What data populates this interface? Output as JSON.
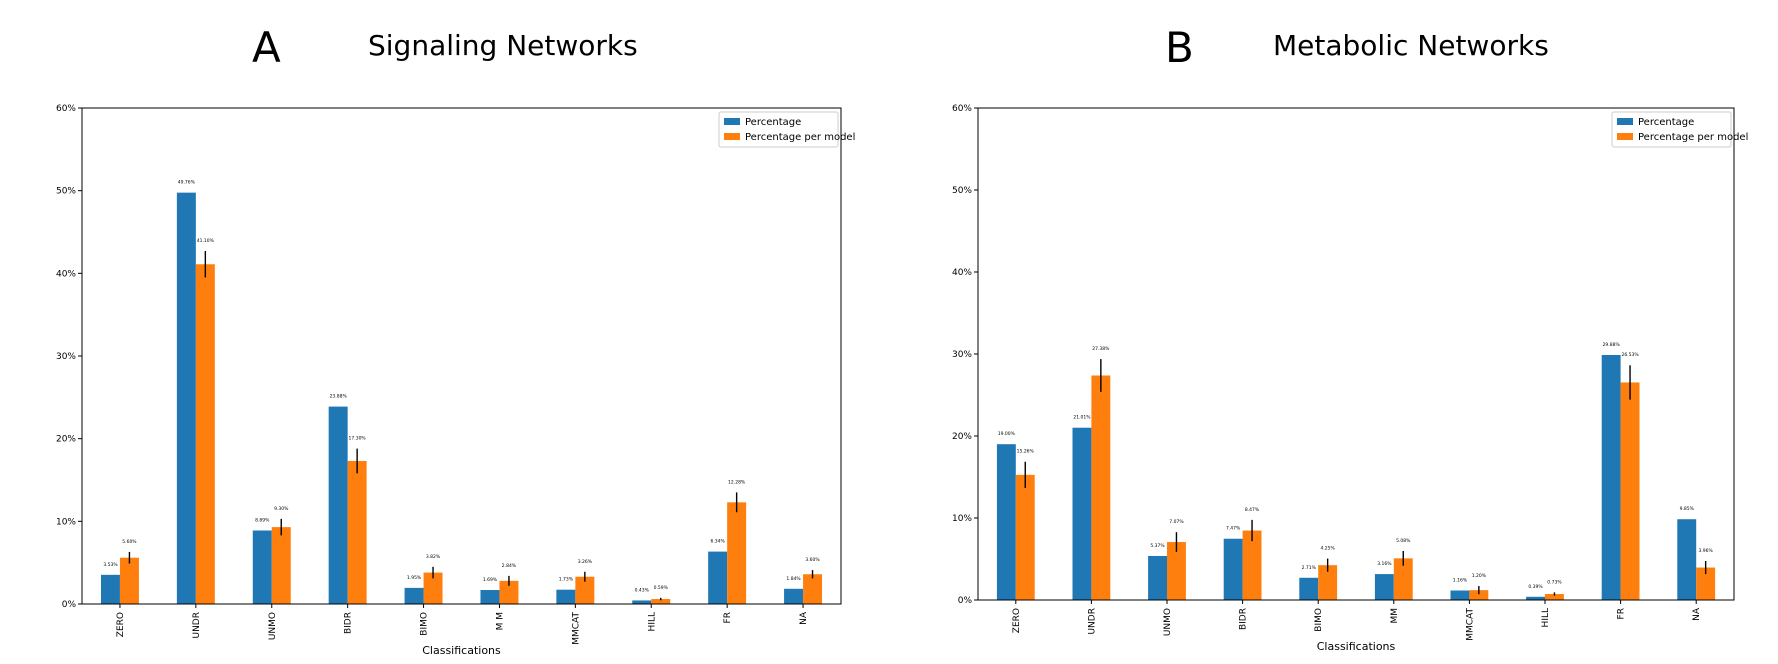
{
  "chart_data": [
    {
      "type": "bar",
      "panel_letter": "A",
      "title": "Signaling Networks",
      "xlabel": "Classifications",
      "ylabel": "",
      "ylim": [
        0,
        60
      ],
      "yticks": [
        "0%",
        "10%",
        "20%",
        "30%",
        "40%",
        "50%",
        "60%"
      ],
      "categories": [
        "ZERO",
        "UNDR",
        "UNMO",
        "BIDR",
        "BIMO",
        "M M",
        "MMCAT",
        "HILL",
        "FR",
        "NA"
      ],
      "legend_position": "top-right",
      "series": [
        {
          "name": "Percentage",
          "color": "#1f77b4",
          "values": [
            3.53,
            49.76,
            8.89,
            23.88,
            1.95,
            1.69,
            1.73,
            0.43,
            6.34,
            1.84
          ],
          "labels": [
            "3.53%",
            "49.76%",
            "8.89%",
            "23.88%",
            "1.95%",
            "1.69%",
            "1.73%",
            "0.43%",
            "6.34%",
            "1.84%"
          ]
        },
        {
          "name": "Percentage per model",
          "color": "#ff7f0e",
          "values": [
            5.6,
            41.1,
            9.3,
            17.3,
            3.8,
            2.8,
            3.3,
            0.6,
            12.3,
            3.6
          ],
          "errors": [
            0.7,
            1.6,
            1.0,
            1.5,
            0.7,
            0.6,
            0.6,
            0.15,
            1.2,
            0.5
          ],
          "labels": [
            "5.60%",
            "41.10%",
            "9.30%",
            "17.30%",
            "3.82%",
            "2.84%",
            "3.26%",
            "0.59%",
            "12.28%",
            "3.60%"
          ]
        }
      ]
    },
    {
      "type": "bar",
      "panel_letter": "B",
      "title": "Metabolic Networks",
      "xlabel": "Classifications",
      "ylabel": "",
      "ylim": [
        0,
        60
      ],
      "yticks": [
        "0%",
        "10%",
        "20%",
        "30%",
        "40%",
        "50%",
        "60%"
      ],
      "categories": [
        "ZERO",
        "UNDR",
        "UNMO",
        "BIDR",
        "BIMO",
        "MM",
        "MMCAT",
        "HILL",
        "FR",
        "NA"
      ],
      "legend_position": "top-right",
      "series": [
        {
          "name": "Percentage",
          "color": "#1f77b4",
          "values": [
            19.0,
            21.01,
            5.37,
            7.47,
            2.71,
            3.16,
            1.16,
            0.39,
            29.88,
            9.85
          ],
          "labels": [
            "19.00%",
            "21.01%",
            "5.37%",
            "7.47%",
            "2.71%",
            "3.16%",
            "1.16%",
            "0.39%",
            "29.88%",
            "9.85%"
          ]
        },
        {
          "name": "Percentage per model",
          "color": "#ff7f0e",
          "values": [
            15.26,
            27.38,
            7.07,
            8.47,
            4.25,
            5.08,
            1.2,
            0.73,
            26.53,
            3.96
          ],
          "errors": [
            1.6,
            2.0,
            1.2,
            1.3,
            0.8,
            0.9,
            0.5,
            0.2,
            2.1,
            0.8
          ],
          "labels": [
            "15.26%",
            "27.38%",
            "7.07%",
            "8.47%",
            "4.25%",
            "5.08%",
            "1.20%",
            "0.73%",
            "26.53%",
            "3.96%"
          ]
        }
      ]
    }
  ]
}
